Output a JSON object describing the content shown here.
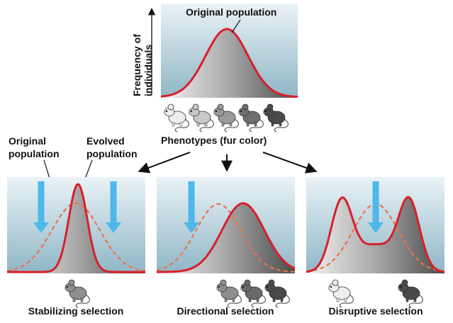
{
  "top_panel": {
    "curve_label": "Original population",
    "y_axis_label_line1": "Frequency of",
    "y_axis_label_line2": "individuals",
    "x_axis_label": "Phenotypes (fur color)",
    "phenotype_colors": [
      "#eeeeee",
      "#c8c8c8",
      "#9a9a9a",
      "#6f6f6f",
      "#4a4a4a"
    ]
  },
  "legend": {
    "original_line1": "Original",
    "original_line2": "population",
    "evolved_line1": "Evolved",
    "evolved_line2": "population"
  },
  "panels": [
    {
      "title": "Stabilizing selection",
      "mouse_colors": [
        "#8e8e8e"
      ]
    },
    {
      "title": "Directional selection",
      "mouse_colors": [
        "#8e8e8e",
        "#6a6a6a",
        "#4a4a4a"
      ]
    },
    {
      "title": "Disruptive selection",
      "mouse_colors": [
        "#eeeeee",
        "#4a4a4a"
      ]
    }
  ],
  "colors": {
    "panel_top": "#eaf3f7",
    "panel_bottom": "#8fb6c6",
    "curve": "#d8202a",
    "original_dashed": "#e8744a",
    "arrow": "#4db8ea"
  }
}
